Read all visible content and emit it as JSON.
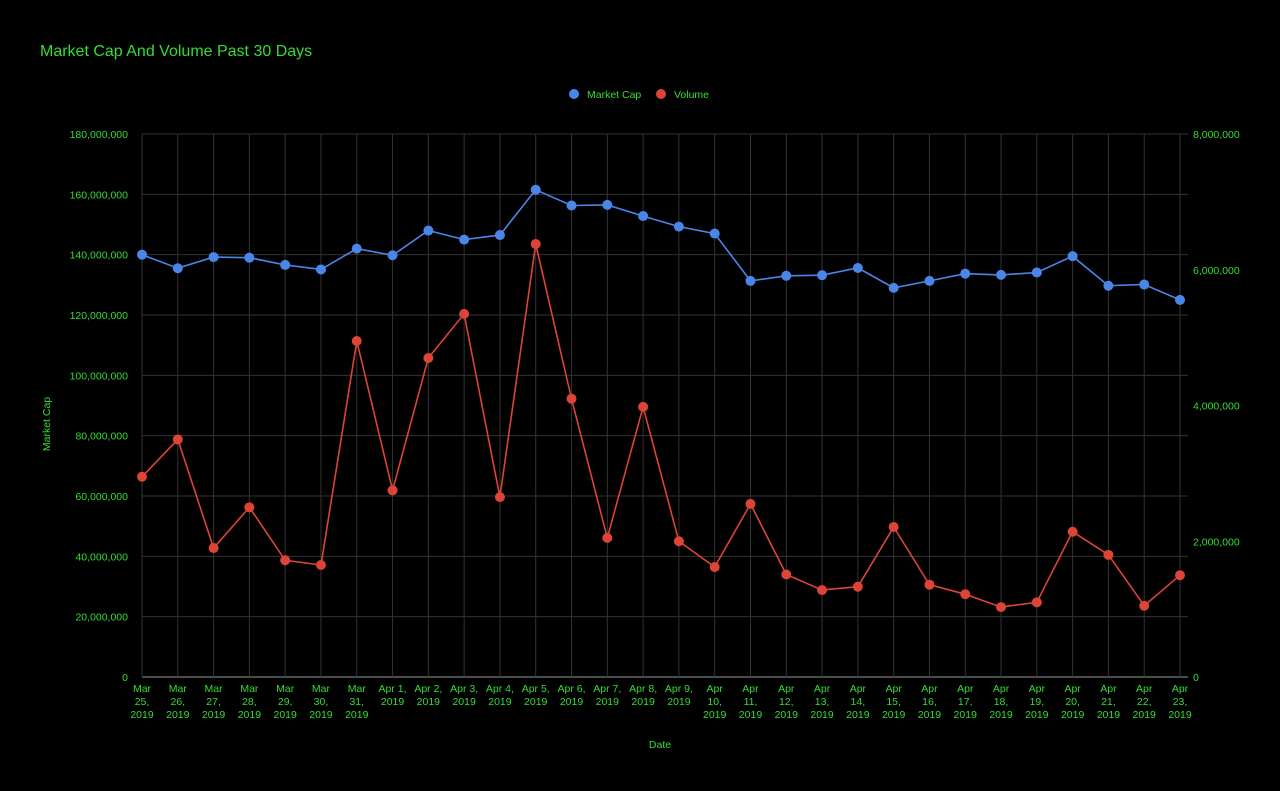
{
  "chart_data": {
    "type": "line",
    "title": "Market Cap And Volume Past 30 Days",
    "xlabel": "Date",
    "ylabel": "Market Cap",
    "y2label": "",
    "ylim": [
      0,
      180000000
    ],
    "y2lim": [
      0,
      8000000
    ],
    "yticks": [
      "0",
      "20,000,000",
      "40,000,000",
      "60,000,000",
      "80,000,000",
      "100,000,000",
      "120,000,000",
      "140,000,000",
      "160,000,000",
      "180,000,000"
    ],
    "y2ticks": [
      "0",
      "2,000,000",
      "4,000,000",
      "6,000,000",
      "8,000,000"
    ],
    "grid": true,
    "legend_position": "top",
    "categories": [
      [
        "Mar",
        "25,",
        "2019"
      ],
      [
        "Mar",
        "26,",
        "2019"
      ],
      [
        "Mar",
        "27,",
        "2019"
      ],
      [
        "Mar",
        "28,",
        "2019"
      ],
      [
        "Mar",
        "29,",
        "2019"
      ],
      [
        "Mar",
        "30,",
        "2019"
      ],
      [
        "Mar",
        "31,",
        "2019"
      ],
      [
        "Apr 1,",
        "2019"
      ],
      [
        "Apr 2,",
        "2019"
      ],
      [
        "Apr 3,",
        "2019"
      ],
      [
        "Apr 4,",
        "2019"
      ],
      [
        "Apr 5,",
        "2019"
      ],
      [
        "Apr 6,",
        "2019"
      ],
      [
        "Apr 7,",
        "2019"
      ],
      [
        "Apr 8,",
        "2019"
      ],
      [
        "Apr 9,",
        "2019"
      ],
      [
        "Apr",
        "10,",
        "2019"
      ],
      [
        "Apr",
        "11,",
        "2019"
      ],
      [
        "Apr",
        "12,",
        "2019"
      ],
      [
        "Apr",
        "13,",
        "2019"
      ],
      [
        "Apr",
        "14,",
        "2019"
      ],
      [
        "Apr",
        "15,",
        "2019"
      ],
      [
        "Apr",
        "16,",
        "2019"
      ],
      [
        "Apr",
        "17,",
        "2019"
      ],
      [
        "Apr",
        "18,",
        "2019"
      ],
      [
        "Apr",
        "19,",
        "2019"
      ],
      [
        "Apr",
        "20,",
        "2019"
      ],
      [
        "Apr",
        "21,",
        "2019"
      ],
      [
        "Apr",
        "22,",
        "2019"
      ],
      [
        "Apr",
        "23,",
        "2019"
      ]
    ],
    "series": [
      {
        "name": "Market Cap",
        "axis": "left",
        "color": "#4a86e8",
        "values": [
          140000000,
          135500000,
          139200000,
          139000000,
          136600000,
          135100000,
          142000000,
          139800000,
          148000000,
          145000000,
          146500000,
          161500000,
          156300000,
          156500000,
          152800000,
          149300000,
          147000000,
          131300000,
          133000000,
          133200000,
          135600000,
          129000000,
          131300000,
          133700000,
          133300000,
          134100000,
          139500000,
          129700000,
          130100000,
          125000000
        ]
      },
      {
        "name": "Volume",
        "axis": "right",
        "color": "#db4437",
        "values": [
          2950000,
          3500000,
          1900000,
          2500000,
          1720000,
          1650000,
          4950000,
          2750000,
          4700000,
          5350000,
          2650000,
          6380000,
          4100000,
          2050000,
          3980000,
          2000000,
          1620000,
          2550000,
          1510000,
          1280000,
          1330000,
          2210000,
          1360000,
          1220000,
          1030000,
          1100000,
          2140000,
          1800000,
          1050000,
          1500000
        ]
      }
    ],
    "colors": {
      "background": "#000000",
      "text": "#33dd33",
      "grid": "#333333",
      "axis": "#888888"
    }
  }
}
